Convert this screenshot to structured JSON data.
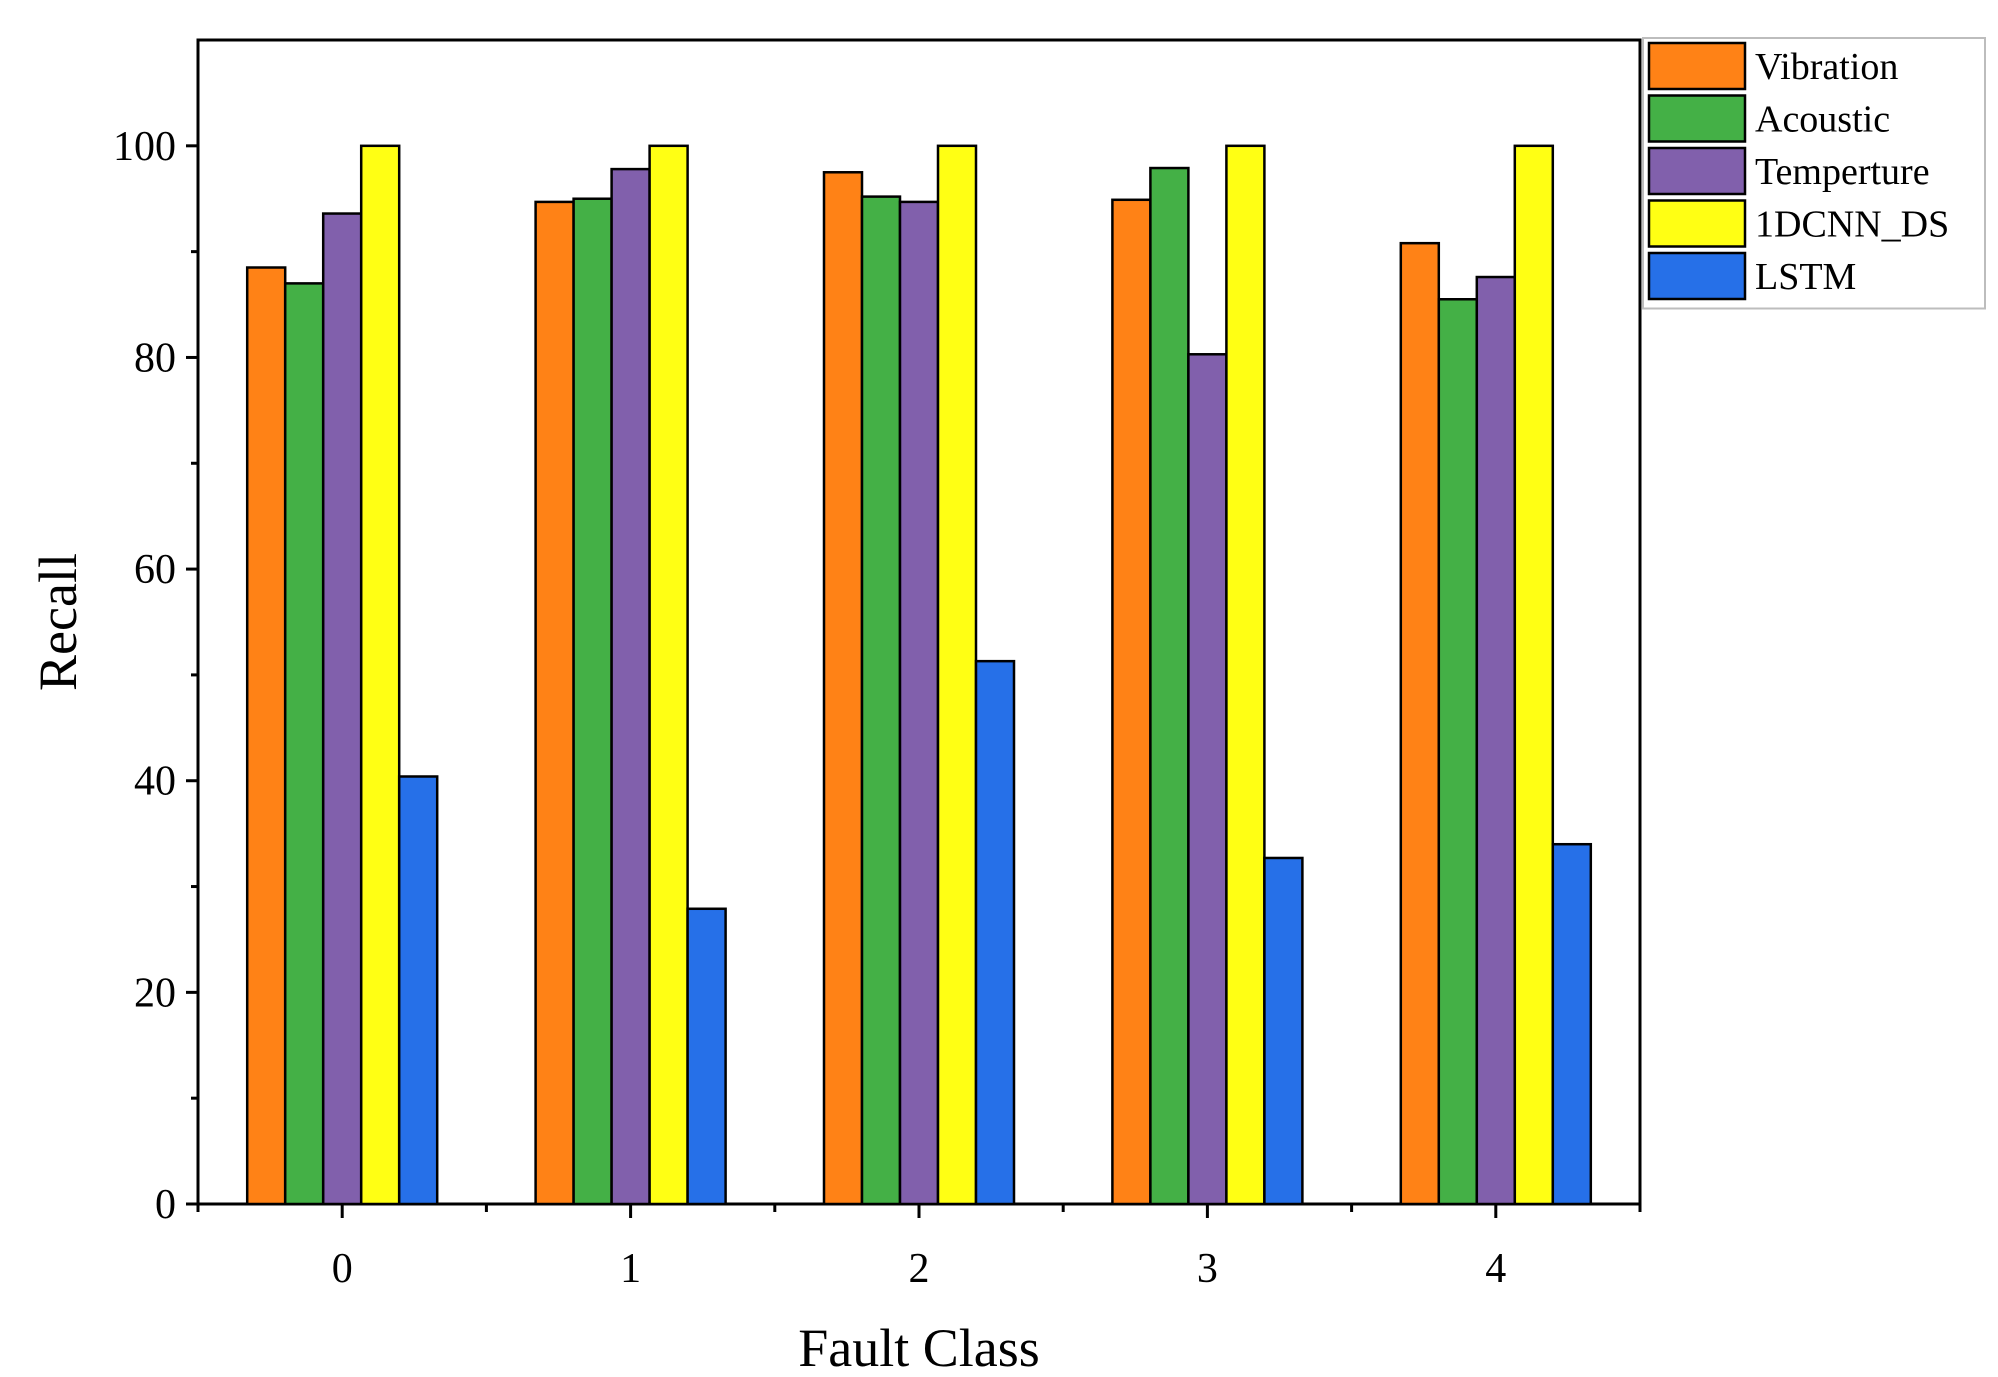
{
  "chart_data": {
    "type": "bar",
    "title": "",
    "xlabel": "Fault Class",
    "ylabel": "Recall",
    "categories": [
      "0",
      "1",
      "2",
      "3",
      "4"
    ],
    "ylim": [
      0,
      110
    ],
    "yticks": [
      0,
      20,
      40,
      60,
      80,
      100
    ],
    "grid": false,
    "legend_position": "top-right, outside plot",
    "series": [
      {
        "name": "Vibration",
        "color": "#FF8216",
        "values": [
          88.5,
          94.7,
          97.5,
          94.9,
          90.8
        ]
      },
      {
        "name": "Acoustic",
        "color": "#44B046",
        "values": [
          87.0,
          95.0,
          95.2,
          97.9,
          85.5
        ]
      },
      {
        "name": "Temperture",
        "color": "#8160AC",
        "values": [
          93.6,
          97.8,
          94.7,
          80.3,
          87.6
        ]
      },
      {
        "name": "1DCNN_DS",
        "color": "#FFFF14",
        "values": [
          100,
          100,
          100,
          100,
          100
        ]
      },
      {
        "name": "LSTM",
        "color": "#2670E8",
        "values": [
          40.4,
          27.9,
          51.3,
          32.7,
          34.0
        ]
      }
    ]
  }
}
